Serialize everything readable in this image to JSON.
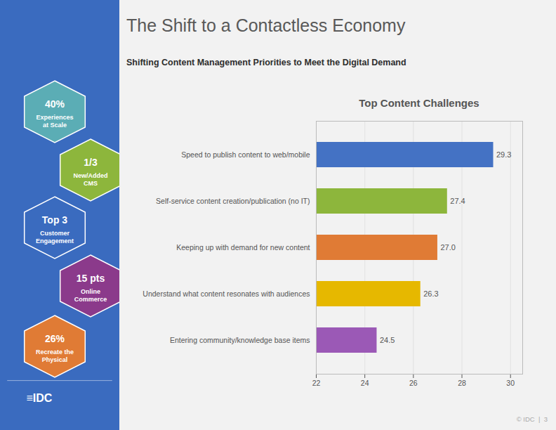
{
  "title": "The Shift to a Contactless Economy",
  "subtitle": "Shifting Content Management Priorities to Meet the Digital Demand",
  "logo": "≡IDC",
  "footer": "© IDC  |  3",
  "annotations": [
    {
      "text": "40%",
      "label": "Experiences\nat Scale",
      "color": "#5badb5"
    },
    {
      "text": "1/3",
      "label": "New/Added\nCMS",
      "color": "#8db63c"
    },
    {
      "text": "Top 3",
      "label": "Customer\nEngagement",
      "color": "#3a6bbf"
    },
    {
      "text": "15 pts",
      "label": "Online\nCommerce",
      "color": "#8b3a8b"
    },
    {
      "text": "26%",
      "label": "Recreate the\nPhysical",
      "color": "#e07b35"
    }
  ],
  "chart_data": {
    "type": "bar",
    "orientation": "horizontal",
    "title": "Top Content Challenges",
    "categories": [
      "Speed to publish content to web/mobile",
      "Self-service content creation/publication (no IT)",
      "Keeping up with demand for new content",
      "Understand what content resonates with audiences",
      "Entering community/knowledge base items"
    ],
    "values": [
      29.3,
      27.4,
      27.0,
      26.3,
      24.5
    ],
    "value_labels": [
      "29.3",
      "27.4",
      "27.0",
      "26.3",
      "24.5"
    ],
    "colors": [
      "#4472c4",
      "#8db63c",
      "#e07b35",
      "#e6b800",
      "#9b59b6"
    ],
    "xlim": [
      22,
      30.5
    ],
    "xticks": [
      22,
      24,
      26,
      28,
      30
    ],
    "grid": true,
    "data_labels": true
  }
}
